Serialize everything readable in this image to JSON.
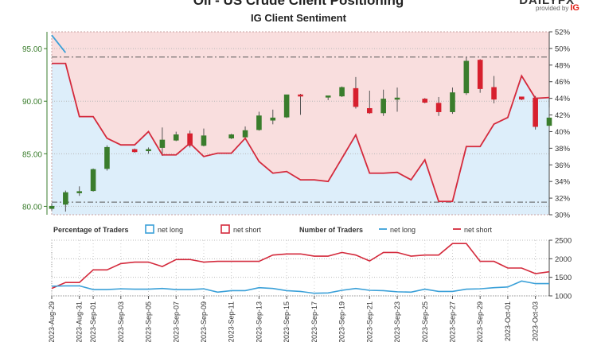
{
  "header": {
    "title": "Oil - US Crude Client Positioning",
    "subtitle": "IG Client Sentiment",
    "brand": "DAILYFX",
    "provided_by": "provided by",
    "provider": "IG"
  },
  "colors": {
    "bull": "#3a7d2c",
    "bear": "#d7202e",
    "net_long": "#3aa0d8",
    "net_short": "#d42a3c",
    "short_zone": "#f9dede",
    "long_zone": "#ddeefa",
    "axis": "#3a7d2c"
  },
  "chart_data": [
    {
      "type": "candlestick",
      "title": "IG Client Sentiment",
      "price_axis": {
        "ticks": [
          "95.00",
          "90.00",
          "85.00",
          "80.00"
        ],
        "ylim": [
          79.2,
          96.6
        ]
      },
      "percent_axis": {
        "ticks": [
          "52%",
          "50%",
          "48%",
          "46%",
          "44%",
          "42%",
          "40%",
          "38%",
          "36%",
          "34%",
          "32%",
          "30%"
        ],
        "ylim": [
          30,
          52
        ]
      },
      "reference_lines": [
        94.2,
        80.4
      ],
      "x": [
        "2023-Aug-29",
        "2023-Aug-30",
        "2023-Aug-31",
        "2023-Sep-01",
        "2023-Sep-02",
        "2023-Sep-03",
        "2023-Sep-04",
        "2023-Sep-05",
        "2023-Sep-06",
        "2023-Sep-07",
        "2023-Sep-08",
        "2023-Sep-09",
        "2023-Sep-10",
        "2023-Sep-11",
        "2023-Sep-12",
        "2023-Sep-13",
        "2023-Sep-14",
        "2023-Sep-15",
        "2023-Sep-16",
        "2023-Sep-17",
        "2023-Sep-18",
        "2023-Sep-19",
        "2023-Sep-20",
        "2023-Sep-21",
        "2023-Sep-22",
        "2023-Sep-23",
        "2023-Sep-24",
        "2023-Sep-25",
        "2023-Sep-26",
        "2023-Sep-27",
        "2023-Sep-28",
        "2023-Sep-29",
        "2023-Sep-30",
        "2023-Oct-01",
        "2023-Oct-02",
        "2023-Oct-03",
        "2023-Oct-04"
      ],
      "candles": [
        [
          79.8,
          80.0,
          79.6,
          80.3
        ],
        [
          80.2,
          81.3,
          79.5,
          81.5
        ],
        [
          81.3,
          81.4,
          81.0,
          81.9
        ],
        [
          81.5,
          83.5,
          81.4,
          83.6
        ],
        [
          83.6,
          85.6,
          83.4,
          85.8
        ],
        null,
        [
          85.4,
          85.2,
          85.1,
          85.5
        ],
        [
          85.3,
          85.4,
          85.0,
          85.6
        ],
        [
          85.6,
          86.3,
          84.8,
          87.5
        ],
        [
          86.3,
          86.8,
          86.2,
          87.1
        ],
        [
          86.9,
          85.8,
          85.6,
          87.2
        ],
        [
          85.8,
          86.7,
          85.7,
          87.4
        ],
        null,
        [
          86.5,
          86.8,
          86.4,
          86.9
        ],
        [
          86.6,
          87.2,
          86.4,
          87.6
        ],
        [
          87.3,
          88.6,
          87.2,
          89.0
        ],
        [
          88.2,
          88.4,
          87.8,
          89.2
        ],
        [
          88.5,
          90.6,
          88.4,
          90.6
        ],
        [
          90.6,
          90.5,
          88.7,
          90.7
        ],
        null,
        [
          90.4,
          90.5,
          90.1,
          90.5
        ],
        [
          90.5,
          91.3,
          90.4,
          91.4
        ],
        [
          91.2,
          89.5,
          89.3,
          92.3
        ],
        [
          89.3,
          88.9,
          88.8,
          91.0
        ],
        [
          88.9,
          90.2,
          88.6,
          91.1
        ],
        [
          90.2,
          90.3,
          89.0,
          91.3
        ],
        null,
        [
          90.2,
          89.9,
          89.8,
          90.3
        ],
        [
          89.8,
          89.0,
          88.6,
          90.4
        ],
        [
          89.0,
          90.8,
          88.8,
          91.3
        ],
        [
          90.8,
          93.8,
          90.6,
          94.2
        ],
        [
          93.9,
          91.2,
          90.8,
          94.0
        ],
        [
          91.3,
          90.2,
          89.8,
          92.4
        ],
        null,
        [
          90.4,
          90.2,
          90.1,
          90.4
        ],
        [
          90.3,
          87.6,
          87.3,
          90.5
        ],
        [
          87.7,
          88.4,
          87.2,
          89.4
        ]
      ],
      "net_short_pct": [
        48.2,
        48.2,
        41.8,
        41.8,
        39.2,
        38.4,
        38.4,
        40.0,
        37.2,
        37.2,
        38.6,
        37.0,
        37.4,
        37.4,
        39.2,
        36.4,
        35.0,
        35.2,
        34.2,
        34.2,
        34.0,
        36.8,
        39.6,
        35.0,
        35.0,
        35.1,
        34.2,
        36.6,
        31.6,
        31.6,
        38.2,
        38.2,
        40.9,
        41.7,
        46.7,
        44.0,
        44.1
      ],
      "net_long_pct": [
        51.6,
        49.5,
        null,
        null,
        null,
        null,
        null,
        null,
        null,
        null,
        null,
        null,
        null,
        null,
        null,
        null,
        null,
        null,
        null,
        null,
        null,
        null,
        null,
        null,
        null,
        null,
        null,
        null,
        null,
        null,
        null,
        null,
        null,
        null,
        null,
        null,
        null
      ]
    },
    {
      "type": "line",
      "legend": {
        "pct_label": "Percentage of Traders",
        "num_label": "Number of Traders",
        "net_long": "net long",
        "net_short": "net short"
      },
      "y_ticks": [
        "2500",
        "2000",
        "1500",
        "1000"
      ],
      "ylim": [
        1000,
        2500
      ],
      "tick_labels": [
        "2023-Aug-29",
        "2023-Aug-31",
        "2023-Sep-01",
        "2023-Sep-03",
        "2023-Sep-05",
        "2023-Sep-07",
        "2023-Sep-09",
        "2023-Sep-11",
        "2023-Sep-13",
        "2023-Sep-15",
        "2023-Sep-17",
        "2023-Sep-19",
        "2023-Sep-21",
        "2023-Sep-23",
        "2023-Sep-25",
        "2023-Sep-27",
        "2023-Sep-29",
        "2023-Oct-01",
        "2023-Oct-03"
      ],
      "series": [
        {
          "name": "net short",
          "values": [
            1200,
            1360,
            1360,
            1700,
            1700,
            1870,
            1910,
            1910,
            1790,
            1980,
            1980,
            1910,
            1930,
            1930,
            1930,
            1930,
            2100,
            2130,
            2130,
            2070,
            2070,
            2170,
            2100,
            1940,
            2170,
            2170,
            2070,
            2100,
            2100,
            2410,
            2410,
            1930,
            1930,
            1750,
            1750,
            1600,
            1650
          ]
        },
        {
          "name": "net long",
          "values": [
            1260,
            1270,
            1270,
            1170,
            1170,
            1190,
            1180,
            1180,
            1200,
            1170,
            1170,
            1190,
            1100,
            1140,
            1140,
            1220,
            1200,
            1140,
            1120,
            1070,
            1080,
            1150,
            1200,
            1150,
            1140,
            1110,
            1100,
            1180,
            1120,
            1120,
            1180,
            1190,
            1220,
            1240,
            1400,
            1330,
            1330
          ]
        }
      ]
    }
  ]
}
